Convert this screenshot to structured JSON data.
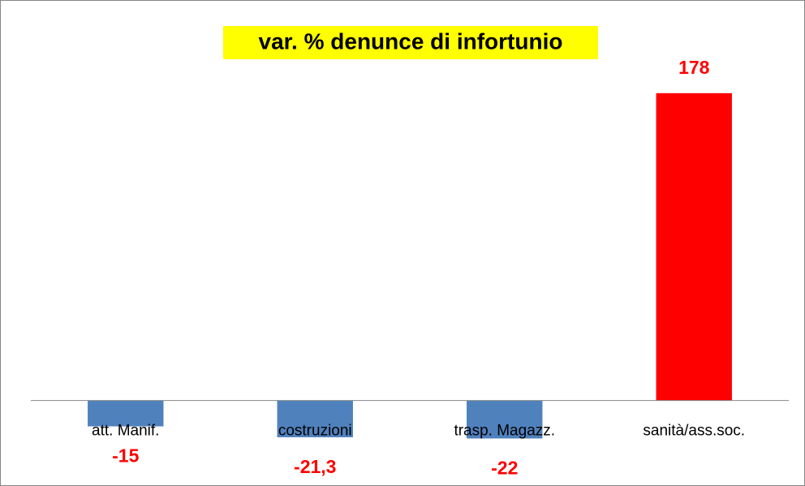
{
  "chart_data": {
    "type": "bar",
    "title": "var. % denunce di infortunio",
    "categories": [
      "att. Manif.",
      "costruzioni",
      "trasp. Magazz.",
      "sanità/ass.soc."
    ],
    "values": [
      -15,
      -21.3,
      -22,
      178
    ],
    "value_labels": [
      "-15",
      "-21,3",
      "-22",
      "178"
    ],
    "colors": [
      "#4f81bd",
      "#4f81bd",
      "#4f81bd",
      "#ff0000"
    ],
    "value_label_color": "#ff0000",
    "title_background": "#ffff00",
    "ylim": [
      -50,
      200
    ]
  }
}
